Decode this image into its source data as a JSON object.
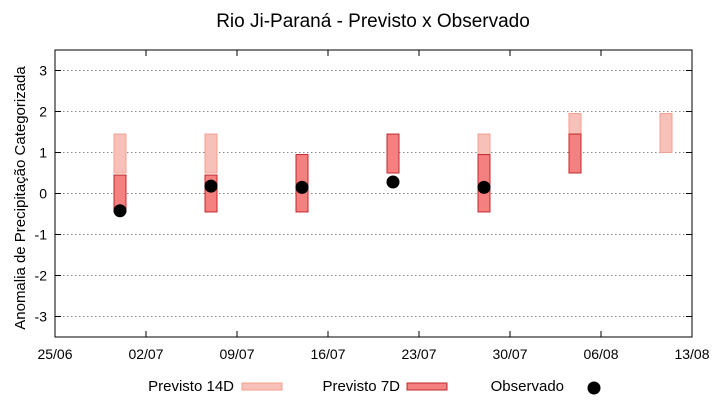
{
  "chart_data": {
    "type": "range-bar",
    "title": "Rio Ji-Paraná - Previsto x Observado",
    "xlabel": "",
    "ylabel": "Anomalia de Precipitação Categorizada",
    "xlim": [
      "25/06",
      "13/08"
    ],
    "ylim": [
      -3.5,
      3.5
    ],
    "x_ticks": [
      "25/06",
      "02/07",
      "09/07",
      "16/07",
      "23/07",
      "30/07",
      "06/08",
      "13/08"
    ],
    "y_ticks": [
      3,
      2,
      1,
      0,
      -1,
      -2,
      -3
    ],
    "grid": "horizontal-dotted",
    "legend_position": "bottom",
    "series": [
      {
        "name": "Previsto 14D",
        "color": "#f7c0b8",
        "edge": "#f2a092",
        "ranges": [
          {
            "x": "30/06",
            "low": 0.5,
            "high": 1.45
          },
          {
            "x": "07/07",
            "low": 0.5,
            "high": 1.45
          },
          {
            "x": "28/07",
            "low": 0.5,
            "high": 1.45
          },
          {
            "x": "04/08",
            "low": 1.45,
            "high": 1.95
          },
          {
            "x": "11/08",
            "low": 1.0,
            "high": 1.95
          }
        ]
      },
      {
        "name": "Previsto 7D",
        "color": "#f58080",
        "edge": "#c0282c",
        "ranges": [
          {
            "x": "30/06",
            "low": -0.45,
            "high": 0.45
          },
          {
            "x": "07/07",
            "low": -0.45,
            "high": 0.45
          },
          {
            "x": "14/07",
            "low": -0.45,
            "high": 0.95
          },
          {
            "x": "21/07",
            "low": 0.5,
            "high": 1.45
          },
          {
            "x": "28/07",
            "low": -0.45,
            "high": 0.95
          },
          {
            "x": "04/08",
            "low": 0.5,
            "high": 1.45
          }
        ]
      },
      {
        "name": "Observado",
        "color": "#000000",
        "points": [
          {
            "x": "30/06",
            "y": -0.42
          },
          {
            "x": "07/07",
            "y": 0.18
          },
          {
            "x": "14/07",
            "y": 0.15
          },
          {
            "x": "21/07",
            "y": 0.28
          },
          {
            "x": "28/07",
            "y": 0.15
          }
        ]
      }
    ]
  }
}
